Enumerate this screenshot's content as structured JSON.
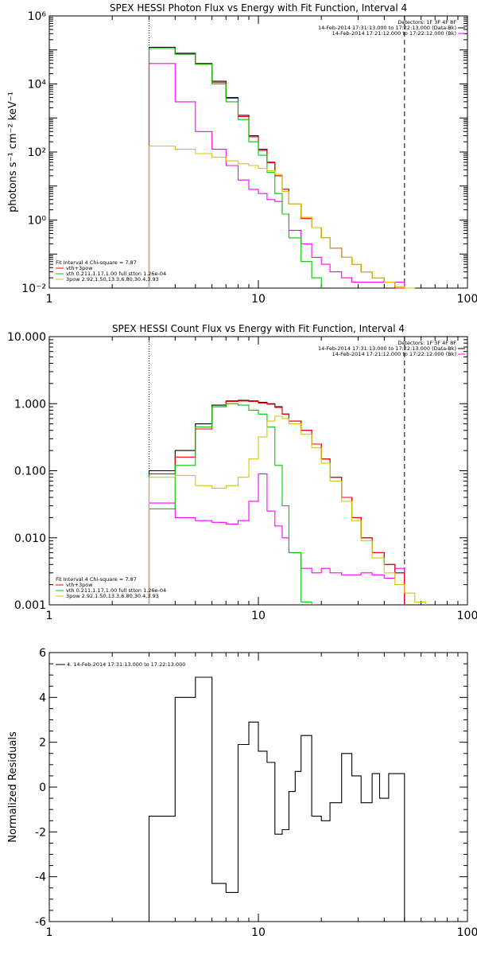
{
  "chart_data": [
    {
      "type": "line",
      "title": "SPEX HESSI Photon Flux vs Energy with Fit Function, Interval 4",
      "xlabel": "",
      "ylabel": "photons s⁻¹ cm⁻² keV⁻¹",
      "xscale": "log",
      "yscale": "log",
      "xlim": [
        1,
        100
      ],
      "ylim": [
        0.01,
        1000000
      ],
      "x_ticks": [
        1,
        10,
        100
      ],
      "x_tick_labels": [
        "1",
        "10",
        "100"
      ],
      "y_ticks": [
        0.01,
        1,
        100,
        10000,
        1000000
      ],
      "y_tick_labels": [
        "10⁻²",
        "10⁰",
        "10²",
        "10⁴",
        "10⁶"
      ],
      "vlines": [
        {
          "x": 3,
          "style": "dotted"
        },
        {
          "x": 50,
          "style": "dashed"
        }
      ],
      "legend_top": [
        "Detectors: 1F 3F 4F 8F",
        "14-Feb-2014 17:31:13.000 to 17:22:13.000 (Data-Bk)",
        "14-Feb-2014 17:21:12.000 to 17:22:12.000 (Bk)"
      ],
      "legend_bottom": [
        "Fit Interval 4   Chi-square = 7.87",
        "vth+3pow",
        "vth 0.211,1.17,1.00  full stton 1.26e-04",
        "3pow  2.92,1.50,13.3,6.80,30.4,3.93"
      ],
      "x_edges": [
        3,
        4,
        5,
        6,
        7,
        8,
        9,
        10,
        11,
        12,
        13,
        14,
        16,
        18,
        20,
        22,
        25,
        28,
        31,
        35,
        40,
        45,
        50,
        56
      ],
      "series": [
        {
          "name": "14-Feb-2014 17:31:13.000 to 17:22:13.000 (Data-Bk)",
          "color": "#000000",
          "values": [
            120000,
            80000,
            40000,
            12000,
            4000,
            1200,
            300,
            120,
            50,
            20,
            8,
            3,
            1.2,
            0.6,
            0.3,
            0.15,
            0.08,
            0.05,
            0.03,
            0.02,
            0.015,
            0.01
          ]
        },
        {
          "name": "14-Feb-2014 17:21:12.000 to 17:22:12.000 (Bk)",
          "color": "#ff00ff",
          "values": [
            40000,
            3000,
            400,
            120,
            40,
            15,
            8,
            6,
            4,
            3.5,
            1.5,
            0.5,
            0.2,
            0.08,
            0.05,
            0.03,
            0.02,
            0.015,
            0.015,
            0.015,
            0.015,
            0.015
          ]
        },
        {
          "name": "vth+3pow",
          "color": "#ff0000",
          "values": [
            110000,
            75000,
            38000,
            11000,
            3800,
            1100,
            280,
            110,
            48,
            20,
            8,
            3,
            1.1,
            0.6,
            0.3,
            0.15,
            0.08,
            0.05,
            0.03,
            0.02,
            0.015,
            0.01
          ]
        },
        {
          "name": "vth 0.211,1.17,1.00  full stton 1.26e-04",
          "color": "#00c800",
          "values": [
            110000,
            75000,
            38000,
            10000,
            3000,
            900,
            200,
            80,
            25,
            6,
            1.5,
            0.3,
            0.06,
            0.02
          ]
        },
        {
          "name": "3pow  2.92,1.50,13.3,6.80,30.4,3.93",
          "color": "#d2c800",
          "values": [
            150,
            120,
            90,
            70,
            55,
            45,
            40,
            33,
            28,
            22,
            7,
            3,
            1.2,
            0.6,
            0.3,
            0.15,
            0.08,
            0.05,
            0.03,
            0.02,
            0.015,
            0.011,
            0.01
          ]
        }
      ]
    },
    {
      "type": "line",
      "title": "SPEX HESSI Count Flux vs Energy with Fit Function, Interval 4",
      "xlabel": "",
      "ylabel": "",
      "xscale": "log",
      "yscale": "log",
      "xlim": [
        1,
        100
      ],
      "ylim": [
        0.001,
        10
      ],
      "x_ticks": [
        1,
        10,
        100
      ],
      "x_tick_labels": [
        "1",
        "10",
        "100"
      ],
      "y_ticks": [
        0.001,
        0.01,
        0.1,
        1,
        10
      ],
      "y_tick_labels": [
        "0.001",
        "0.010",
        "0.100",
        "1.000",
        "10.000"
      ],
      "vlines": [
        {
          "x": 3,
          "style": "dotted"
        },
        {
          "x": 50,
          "style": "dashed"
        }
      ],
      "legend_top": [
        "Detectors: 1F 3F 4F 8F",
        "14-Feb-2014 17:31:13.000 to 17:22:13.000 (Data-Bk)",
        "14-Feb-2014 17:21:12.000 to 17:22:12.000 (Bk)"
      ],
      "legend_bottom": [
        "Fit Interval 4   Chi-square = 7.87",
        "vth+3pow",
        "vth 0.211,1.17,1.00  full stton 1.26e-04",
        "3pow  2.92,1.50,13.3,6.80,30.4,3.93"
      ],
      "x_edges": [
        3,
        4,
        5,
        6,
        7,
        8,
        9,
        10,
        11,
        12,
        13,
        14,
        16,
        18,
        20,
        22,
        25,
        28,
        31,
        35,
        40,
        45,
        50,
        56,
        63
      ],
      "series": [
        {
          "name": "14-Feb-2014 17:31:13.000 to 17:22:13.000 (Data-Bk)",
          "color": "#000000",
          "values": [
            0.1,
            0.2,
            0.5,
            0.95,
            1.1,
            1.12,
            1.1,
            1.05,
            1.0,
            0.9,
            0.7,
            0.55,
            0.4,
            0.25,
            0.15,
            0.08,
            0.04,
            0.02,
            0.01,
            0.006,
            0.004,
            0.003
          ]
        },
        {
          "name": "14-Feb-2014 17:21:12.000 to 17:22:12.000 (Bk)",
          "color": "#ff00ff",
          "values": [
            0.033,
            0.02,
            0.018,
            0.017,
            0.016,
            0.018,
            0.035,
            0.09,
            0.025,
            0.015,
            0.01,
            0.006,
            0.0035,
            0.003,
            0.0035,
            0.003,
            0.0028,
            0.0028,
            0.003,
            0.0028,
            0.0025,
            0.0035
          ]
        },
        {
          "name": "vth+3pow",
          "color": "#ff0000",
          "values": [
            0.09,
            0.16,
            0.42,
            0.9,
            1.08,
            1.1,
            1.08,
            1.02,
            0.98,
            0.88,
            0.7,
            0.55,
            0.4,
            0.25,
            0.15,
            0.08,
            0.04,
            0.02,
            0.01,
            0.006,
            0.004,
            0.003
          ]
        },
        {
          "name": "vth 0.211,1.17,1.00  full stton 1.26e-04",
          "color": "#00c800",
          "values": [
            0.027,
            0.12,
            0.45,
            0.9,
            1.0,
            0.95,
            0.8,
            0.7,
            0.45,
            0.12,
            0.03,
            0.006,
            0.0011
          ]
        },
        {
          "name": "3pow  2.92,1.50,13.3,6.80,30.4,3.93",
          "color": "#d2c800",
          "values": [
            0.08,
            0.085,
            0.06,
            0.055,
            0.06,
            0.08,
            0.15,
            0.32,
            0.55,
            0.65,
            0.6,
            0.5,
            0.35,
            0.22,
            0.13,
            0.07,
            0.035,
            0.018,
            0.009,
            0.005,
            0.003,
            0.002,
            0.0015,
            0.0011
          ]
        }
      ]
    },
    {
      "type": "line",
      "title": "",
      "xlabel": "",
      "ylabel": "Normalized Residuals",
      "xscale": "log",
      "yscale": "linear",
      "xlim": [
        1,
        100
      ],
      "ylim": [
        -6,
        6
      ],
      "x_ticks": [
        1,
        10,
        100
      ],
      "x_tick_labels": [
        "1",
        "10",
        "100"
      ],
      "y_ticks": [
        -6,
        -4,
        -2,
        0,
        2,
        4,
        6
      ],
      "y_tick_labels": [
        "-6",
        "-4",
        "-2",
        "0",
        "2",
        "4",
        "6"
      ],
      "legend_top": [
        "4. 14-Feb-2014 17:31:13.000 to 17:22:13.000"
      ],
      "x_edges": [
        3,
        4,
        5,
        6,
        7,
        8,
        9,
        10,
        11,
        12,
        13,
        14,
        15,
        16,
        18,
        20,
        22,
        25,
        28,
        31,
        35,
        38,
        42,
        46,
        50
      ],
      "series": [
        {
          "name": "4. 14-Feb-2014 17:31:13.000 to 17:22:13.000",
          "color": "#000000",
          "values": [
            -1.3,
            4.0,
            4.9,
            -4.3,
            -4.7,
            1.9,
            2.9,
            1.6,
            1.1,
            -2.1,
            -1.9,
            -0.2,
            0.7,
            2.3,
            -1.3,
            -1.5,
            -0.7,
            1.5,
            0.5,
            -0.7,
            0.6,
            -0.5,
            0.6,
            0.6
          ]
        }
      ]
    }
  ]
}
